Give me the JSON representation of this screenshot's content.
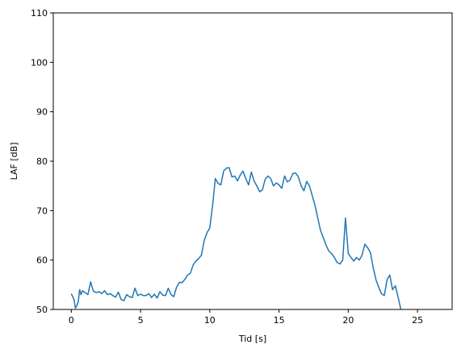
{
  "chart_data": {
    "type": "line",
    "title": "",
    "xlabel": "Tid [s]",
    "ylabel": "LAF [dB]",
    "xlim": [
      -1.3,
      27.5
    ],
    "ylim": [
      50,
      110
    ],
    "xticks": [
      0,
      5,
      10,
      15,
      20,
      25
    ],
    "yticks": [
      50,
      60,
      70,
      80,
      90,
      100,
      110
    ],
    "xtick_labels": [
      "0",
      "5",
      "10",
      "15",
      "20",
      "25"
    ],
    "ytick_labels": [
      "50",
      "60",
      "70",
      "80",
      "90",
      "100",
      "110"
    ],
    "grid": false,
    "legend": "none",
    "series": [
      {
        "color": "#1f77b4",
        "x": [
          0.0,
          0.2,
          0.3,
          0.4,
          0.5,
          0.6,
          0.7,
          0.8,
          1.0,
          1.2,
          1.4,
          1.5,
          1.6,
          1.8,
          2.0,
          2.2,
          2.4,
          2.6,
          2.8,
          3.0,
          3.2,
          3.4,
          3.6,
          3.8,
          4.0,
          4.2,
          4.4,
          4.6,
          4.8,
          5.0,
          5.2,
          5.4,
          5.6,
          5.8,
          6.0,
          6.2,
          6.4,
          6.6,
          6.8,
          7.0,
          7.2,
          7.4,
          7.6,
          7.8,
          8.0,
          8.2,
          8.4,
          8.6,
          8.8,
          9.0,
          9.2,
          9.4,
          9.6,
          9.8,
          10.0,
          10.2,
          10.4,
          10.6,
          10.8,
          11.0,
          11.2,
          11.4,
          11.6,
          11.8,
          12.0,
          12.2,
          12.4,
          12.6,
          12.8,
          13.0,
          13.2,
          13.4,
          13.6,
          13.8,
          14.0,
          14.2,
          14.4,
          14.6,
          14.8,
          15.0,
          15.2,
          15.4,
          15.6,
          15.8,
          16.0,
          16.2,
          16.4,
          16.6,
          16.8,
          17.0,
          17.2,
          17.4,
          17.6,
          17.8,
          18.0,
          18.2,
          18.4,
          18.6,
          18.8,
          19.0,
          19.2,
          19.4,
          19.6,
          19.8,
          19.9,
          20.0,
          20.2,
          20.4,
          20.6,
          20.8,
          21.0,
          21.2,
          21.4,
          21.6,
          21.8,
          22.0,
          22.2,
          22.4,
          22.6,
          22.8,
          23.0,
          23.2,
          23.4,
          23.6,
          23.8
        ],
        "y": [
          53.2,
          52.0,
          50.3,
          50.8,
          51.5,
          54.0,
          53.0,
          53.8,
          53.4,
          53.0,
          55.6,
          54.6,
          53.7,
          53.4,
          53.6,
          53.2,
          53.8,
          53.0,
          53.2,
          52.8,
          52.5,
          53.5,
          52.0,
          51.8,
          53.0,
          52.6,
          52.4,
          54.3,
          52.8,
          53.1,
          52.8,
          52.8,
          53.2,
          52.4,
          53.1,
          52.3,
          53.6,
          52.9,
          52.8,
          54.3,
          53.0,
          52.6,
          54.5,
          55.5,
          55.4,
          56.1,
          57.0,
          57.3,
          59.0,
          59.8,
          60.3,
          61.0,
          64.0,
          65.5,
          66.5,
          71.0,
          76.5,
          75.5,
          75.2,
          78.0,
          78.6,
          78.7,
          76.8,
          77.0,
          76.0,
          77.2,
          78.0,
          76.5,
          75.2,
          77.8,
          76.0,
          75.0,
          73.8,
          74.2,
          76.3,
          77.0,
          76.5,
          75.0,
          75.6,
          75.2,
          74.5,
          77.0,
          75.8,
          76.2,
          77.5,
          77.6,
          76.8,
          75.0,
          74.0,
          75.9,
          75.0,
          73.0,
          71.0,
          68.5,
          66.0,
          64.5,
          63.0,
          61.8,
          61.3,
          60.5,
          59.5,
          59.2,
          60.0,
          68.5,
          65.0,
          61.3,
          60.5,
          59.8,
          60.5,
          60.0,
          61.0,
          63.2,
          62.5,
          61.5,
          58.5,
          56.0,
          54.5,
          53.2,
          52.8,
          56.0,
          57.0,
          54.0,
          54.8,
          52.5,
          50.0
        ]
      }
    ]
  }
}
